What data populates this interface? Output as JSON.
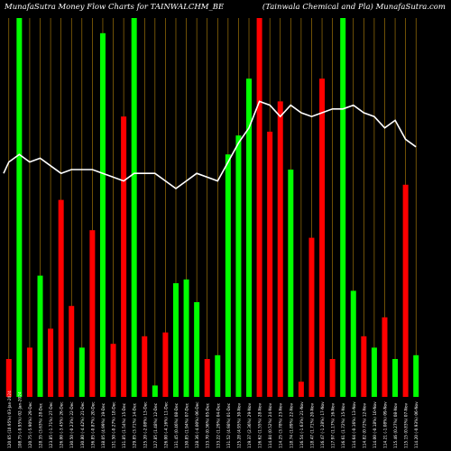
{
  "header": {
    "left_title": "MunafaSutra  Money Flow  Charts for TAINWALCHM_BE",
    "right_title": "(Tainwala  Chemical  and Pla) MunafaSutra.com"
  },
  "colors": {
    "background": "#000000",
    "up": "#00ff00",
    "down": "#ff0000",
    "grid": "#b8860b",
    "line": "#ffffff"
  },
  "chart_data": {
    "type": "bar",
    "title": "MunafaSutra  Money Flow  Charts for TAINWALCHM_BE",
    "ylim": [
      0,
      100
    ],
    "bars": [
      {
        "label": "120.65 (10.95%) 03-Jan-2024",
        "value": 10,
        "dir": "down"
      },
      {
        "label": "108.75 (-9.95%) 02-Jan-2024",
        "value": 100,
        "dir": "up"
      },
      {
        "label": "120.75 (-5.90%) 29-Dec",
        "value": 13,
        "dir": "down"
      },
      {
        "label": "128.35 (3.63%) 28-Dec",
        "value": 32,
        "dir": "up"
      },
      {
        "label": "123.85 (-1.71%) 27-Dec",
        "value": 18,
        "dir": "down"
      },
      {
        "label": "126.00 (-3.45%) 26-Dec",
        "value": 52,
        "dir": "down"
      },
      {
        "label": "130.50 (-0.23%) 22-Dec",
        "value": 24,
        "dir": "down"
      },
      {
        "label": "130.80 (-4.42%) 21-Dec",
        "value": 13,
        "dir": "up"
      },
      {
        "label": "136.85 (-0.87%) 20-Dec",
        "value": 44,
        "dir": "down"
      },
      {
        "label": "138.05 (4.99%) 19-Dec",
        "value": 96,
        "dir": "up"
      },
      {
        "label": "131.50 (-0.27%) 18-Dec",
        "value": 14,
        "dir": "down"
      },
      {
        "label": "131.85 (1.54%) 15-Dec",
        "value": 74,
        "dir": "down"
      },
      {
        "label": "129.85 (3.71%) 14-Dec",
        "value": 100,
        "dir": "up"
      },
      {
        "label": "125.20 (-2.08%) 13-Dec",
        "value": 16,
        "dir": "down"
      },
      {
        "label": "127.85 (1.48%) 12-Dec",
        "value": 3,
        "dir": "up"
      },
      {
        "label": "126.00 (-4.16%) 11-Dec",
        "value": 17,
        "dir": "down"
      },
      {
        "label": "131.45 (0.46%) 08-Dec",
        "value": 30,
        "dir": "up"
      },
      {
        "label": "130.85 (1.94%) 07-Dec",
        "value": 31,
        "dir": "up"
      },
      {
        "label": "128.36 (-4.00%) 06-Dec",
        "value": 25,
        "dir": "up"
      },
      {
        "label": "133.70 (0.36%) 05-Dec",
        "value": 10,
        "dir": "down"
      },
      {
        "label": "133.22 (1.29%) 04-Dec",
        "value": 11,
        "dir": "up"
      },
      {
        "label": "131.52 (4.98%) 01-Dec",
        "value": 64,
        "dir": "up"
      },
      {
        "label": "125.28 (4.95%) 30-Nov",
        "value": 69,
        "dir": "up"
      },
      {
        "label": "119.37 (2.36%) 29-Nov",
        "value": 84,
        "dir": "up"
      },
      {
        "label": "116.62 (1.55%) 28-Nov",
        "value": 100,
        "dir": "down"
      },
      {
        "label": "114.84 (0.52%) 24-Nov",
        "value": 70,
        "dir": "down"
      },
      {
        "label": "114.25 (3.78%) 23-Nov",
        "value": 78,
        "dir": "down"
      },
      {
        "label": "118.74 (1.89%) 22-Nov",
        "value": 60,
        "dir": "up"
      },
      {
        "label": "116.54 (-1.63%) 21-Nov",
        "value": 4,
        "dir": "down"
      },
      {
        "label": "118.47 (1.71%) 20-Nov",
        "value": 42,
        "dir": "down"
      },
      {
        "label": "116.47 (-1.28%) 17-Nov",
        "value": 84,
        "dir": "down"
      },
      {
        "label": "117.97 (1.17%) 16-Nov",
        "value": 10,
        "dir": "down"
      },
      {
        "label": "116.61 (1.72%) 15-Nov",
        "value": 100,
        "dir": "up"
      },
      {
        "label": "114.64 (-0.16%) 13-Nov",
        "value": 28,
        "dir": "up"
      },
      {
        "label": "114.82 (0.72%) 12-Nov",
        "value": 16,
        "dir": "down"
      },
      {
        "label": "114.00 (-0.18%) 10-Nov",
        "value": 13,
        "dir": "up"
      },
      {
        "label": "114.21 (-1.08%) 09-Nov",
        "value": 21,
        "dir": "down"
      },
      {
        "label": "115.46 (0.27%) 08-Nov",
        "value": 10,
        "dir": "up"
      },
      {
        "label": "115.15 (0.83%) 07-Nov",
        "value": 56,
        "dir": "down"
      },
      {
        "label": "114.20 (-0.93%) 06-Nov",
        "value": 11,
        "dir": "up"
      }
    ],
    "price_line": [
      62,
      64,
      62,
      63,
      61,
      59,
      60,
      60,
      60,
      59,
      58,
      57,
      59,
      59,
      59,
      57,
      55,
      57,
      59,
      58,
      57,
      62,
      67,
      71,
      78,
      77,
      74,
      77,
      75,
      74,
      75,
      76,
      76,
      77,
      75,
      74,
      71,
      73,
      68,
      66
    ]
  }
}
